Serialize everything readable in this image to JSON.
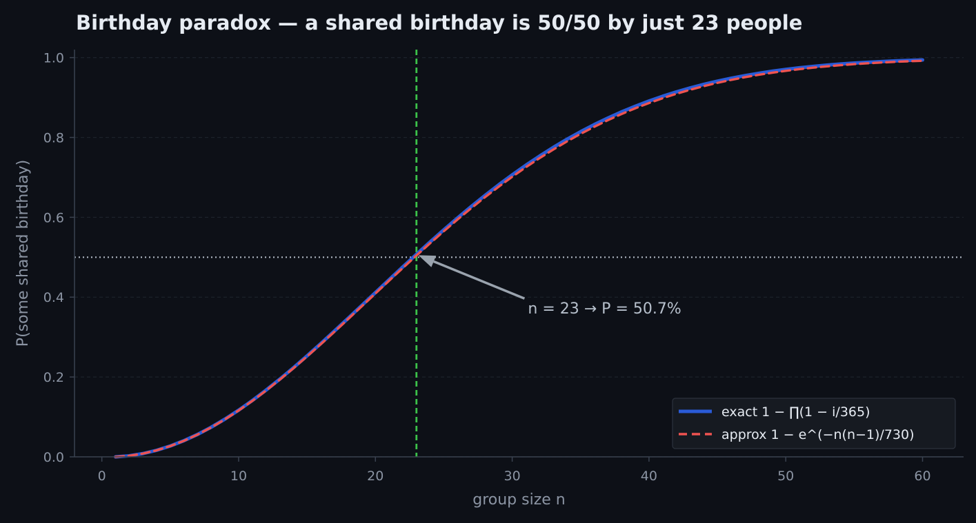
{
  "chart_data": {
    "type": "line",
    "title": "Birthday paradox — a shared birthday is 50/50 by just 23 people",
    "xlabel": "group size n",
    "ylabel": "P(some shared birthday)",
    "xlim": [
      -2,
      63
    ],
    "ylim": [
      0,
      1.02
    ],
    "xticks": [
      0,
      10,
      20,
      30,
      40,
      50,
      60
    ],
    "yticks": [
      0.0,
      0.2,
      0.4,
      0.6,
      0.8,
      1.0
    ],
    "xtick_labels": [
      "0",
      "10",
      "20",
      "30",
      "40",
      "50",
      "60"
    ],
    "ytick_labels": [
      "0.0",
      "0.2",
      "0.4",
      "0.6",
      "0.8",
      "1.0"
    ],
    "grid": "horizontal, dashed",
    "legend_position": "bottom-right",
    "series": [
      {
        "name": "exact  1 − ∏(1 − i/365)",
        "style": "solid",
        "color": "#2a5bd7",
        "x": [
          1,
          2,
          3,
          4,
          5,
          6,
          7,
          8,
          9,
          10,
          11,
          12,
          13,
          14,
          15,
          16,
          17,
          18,
          19,
          20,
          21,
          22,
          23,
          24,
          25,
          26,
          27,
          28,
          29,
          30,
          31,
          32,
          33,
          34,
          35,
          36,
          37,
          38,
          39,
          40,
          41,
          42,
          43,
          44,
          45,
          46,
          47,
          48,
          49,
          50,
          51,
          52,
          53,
          54,
          55,
          56,
          57,
          58,
          59,
          60
        ],
        "y": [
          0.0,
          0.0027,
          0.0082,
          0.0164,
          0.0271,
          0.0405,
          0.0562,
          0.0743,
          0.0946,
          0.1169,
          0.1411,
          0.167,
          0.1944,
          0.2231,
          0.2529,
          0.2836,
          0.315,
          0.3469,
          0.3791,
          0.4114,
          0.4437,
          0.4757,
          0.5073,
          0.5383,
          0.5687,
          0.5982,
          0.6269,
          0.6545,
          0.681,
          0.7063,
          0.7305,
          0.7533,
          0.775,
          0.7953,
          0.8144,
          0.8322,
          0.8487,
          0.8641,
          0.8782,
          0.8912,
          0.9032,
          0.914,
          0.9239,
          0.9329,
          0.941,
          0.9483,
          0.9548,
          0.9606,
          0.9658,
          0.9704,
          0.9744,
          0.978,
          0.9811,
          0.9839,
          0.9863,
          0.9883,
          0.9901,
          0.9917,
          0.993,
          0.9941
        ]
      },
      {
        "name": "approx  1 − e^(−n(n−1)/730)",
        "style": "dashed",
        "color": "#ef5350",
        "x": [
          1,
          2,
          3,
          4,
          5,
          6,
          7,
          8,
          9,
          10,
          11,
          12,
          13,
          14,
          15,
          16,
          17,
          18,
          19,
          20,
          21,
          22,
          23,
          24,
          25,
          26,
          27,
          28,
          29,
          30,
          31,
          32,
          33,
          34,
          35,
          36,
          37,
          38,
          39,
          40,
          41,
          42,
          43,
          44,
          45,
          46,
          47,
          48,
          49,
          50,
          51,
          52,
          53,
          54,
          55,
          56,
          57,
          58,
          59,
          60
        ],
        "y": [
          0.0,
          0.0027,
          0.0082,
          0.0163,
          0.027,
          0.0402,
          0.0559,
          0.0738,
          0.0939,
          0.1161,
          0.1401,
          0.1659,
          0.1931,
          0.2217,
          0.2514,
          0.2819,
          0.3132,
          0.345,
          0.377,
          0.4092,
          0.4412,
          0.4729,
          0.5043,
          0.535,
          0.5651,
          0.5944,
          0.6227,
          0.6501,
          0.6763,
          0.7015,
          0.7255,
          0.7482,
          0.7697,
          0.79,
          0.809,
          0.8268,
          0.8434,
          0.8588,
          0.8731,
          0.8862,
          0.8983,
          0.9093,
          0.9194,
          0.9285,
          0.9367,
          0.9441,
          0.9508,
          0.9568,
          0.9621,
          0.9669,
          0.9711,
          0.9748,
          0.9781,
          0.981,
          0.9836,
          0.9858,
          0.9877,
          0.9894,
          0.9908,
          0.9921
        ]
      }
    ],
    "reference_lines": [
      {
        "orientation": "horizontal",
        "value": 0.5,
        "style": "dotted",
        "color": "#b0b8c4"
      },
      {
        "orientation": "vertical",
        "value": 23,
        "style": "dashed",
        "color": "#3cc24a"
      }
    ],
    "annotation": {
      "text": "n = 23 → P = 50.7%",
      "point": [
        23,
        0.507
      ],
      "text_anchor": [
        31,
        0.4
      ],
      "color": "#b7c0cc"
    }
  },
  "colors": {
    "background": "#0d1017",
    "axis": "#3a4250",
    "grid": "#1d222b",
    "legend_bg": "#161a21",
    "legend_border": "#2c323d",
    "arrow": "#9aa3ae"
  }
}
